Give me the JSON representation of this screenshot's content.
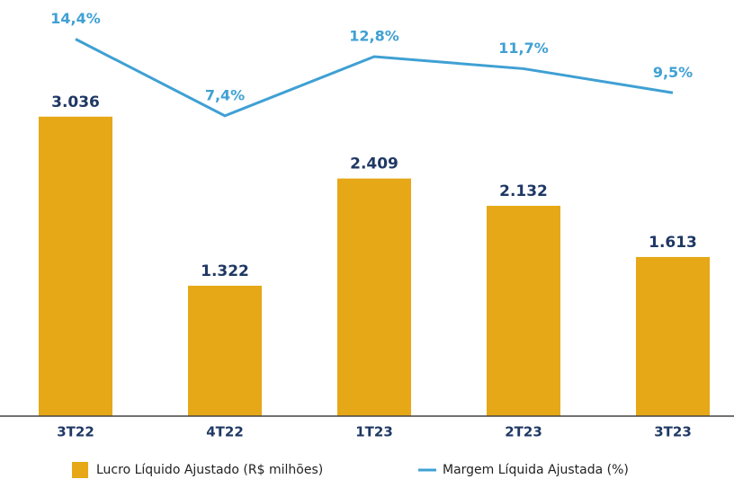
{
  "chart_data": {
    "type": "bar_line",
    "categories": [
      "3T22",
      "4T22",
      "1T23",
      "2T23",
      "3T23"
    ],
    "series": [
      {
        "name": "Lucro Líquido Ajustado (R$ milhões)",
        "type": "bar",
        "color": "#e6a817",
        "values": [
          3036,
          1322,
          2409,
          2132,
          1613
        ],
        "value_labels": [
          "3.036",
          "1.322",
          "2.409",
          "2.132",
          "1.613"
        ]
      },
      {
        "name": "Margem Líquida Ajustada (%)",
        "type": "line",
        "axis": "y2",
        "color": "#3fa0d4",
        "values": [
          14.4,
          7.4,
          12.8,
          11.7,
          9.5
        ],
        "value_labels": [
          "14,4%",
          "7,4%",
          "12,8%",
          "11,7%",
          "9,5%"
        ]
      }
    ],
    "ylim": [
      0,
      4000
    ],
    "y2lim": [
      -20,
      16
    ],
    "legend": "bottom"
  }
}
